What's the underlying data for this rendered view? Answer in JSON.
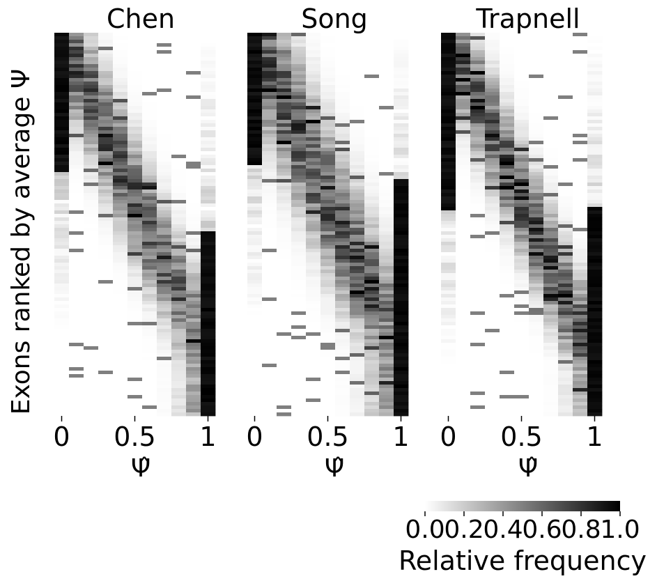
{
  "chart_data": {
    "type": "heatmap",
    "panels": [
      {
        "title": "Chen",
        "xlabel": "Ψ̂",
        "xticks": [
          "0",
          "0.5",
          "1"
        ]
      },
      {
        "title": "Song",
        "xlabel": "Ψ̂",
        "xticks": [
          "0",
          "0.5",
          "1"
        ]
      },
      {
        "title": "Trapnell",
        "xlabel": "Ψ̂",
        "xticks": [
          "0",
          "0.5",
          "1"
        ]
      }
    ],
    "ylabel": "Exons ranked by average Ψ",
    "x_bins": [
      0.0,
      0.1,
      0.2,
      0.3,
      0.4,
      0.5,
      0.6,
      0.7,
      0.8,
      0.9,
      1.0
    ],
    "value_range": [
      0.0,
      1.0
    ],
    "colormap": {
      "low": "#ffffff",
      "high": "#000000"
    },
    "colorbar": {
      "label": "Relative frequency",
      "ticks": [
        "0.0",
        "0.2",
        "0.4",
        "0.6",
        "0.8",
        "1.0"
      ],
      "tick_values": [
        0.0,
        0.2,
        0.4,
        0.6,
        0.8,
        1.0
      ]
    }
  }
}
